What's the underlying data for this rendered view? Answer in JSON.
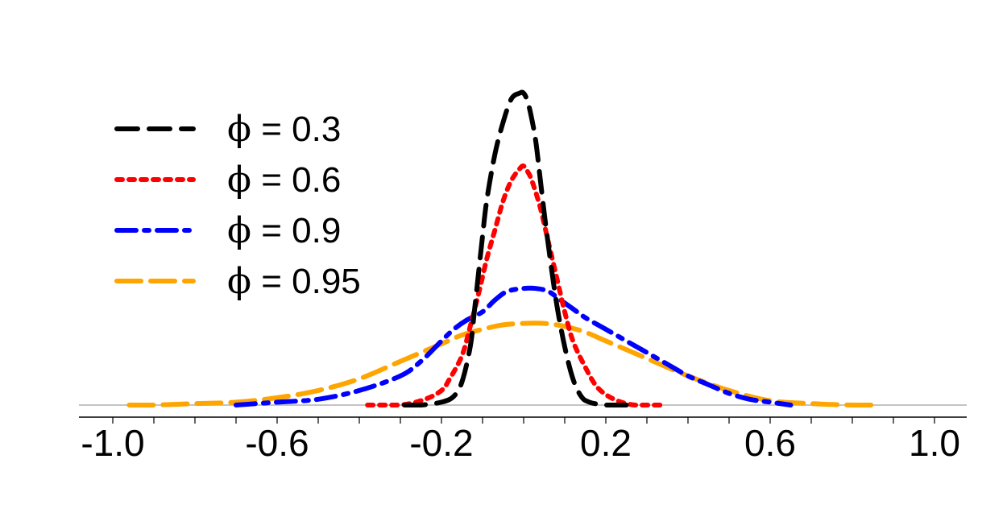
{
  "chart_data": {
    "type": "line",
    "title": "",
    "xlabel": "",
    "ylabel": "",
    "xlim": [
      -1.0,
      1.0
    ],
    "xticks": [
      -1.0,
      -0.6,
      -0.2,
      0.2,
      0.6,
      1.0
    ],
    "xtick_labels": [
      "-1.0",
      "-0.6",
      "-0.2",
      "0.2",
      "0.6",
      "1.0"
    ],
    "y_axis_visible": false,
    "grid": false,
    "legend_position": "top-left",
    "series": [
      {
        "name": "ϕ = 0.3",
        "legend_symbol": "ϕ",
        "legend_text": " = 0.3",
        "color": "#000000",
        "line_style": "dashed",
        "x": [
          -0.29,
          -0.25,
          -0.2,
          -0.17,
          -0.15,
          -0.13,
          -0.12,
          -0.11,
          -0.1,
          -0.09,
          -0.07,
          -0.05,
          -0.03,
          -0.01,
          0.0,
          0.01,
          0.02,
          0.03,
          0.04,
          0.05,
          0.06,
          0.08,
          0.1,
          0.12,
          0.14,
          0.16,
          0.2,
          0.25
        ],
        "y": [
          0.0,
          0.0,
          0.01,
          0.03,
          0.08,
          0.2,
          0.32,
          0.45,
          0.58,
          0.7,
          0.86,
          0.97,
          1.05,
          1.07,
          1.07,
          1.04,
          0.98,
          0.9,
          0.78,
          0.66,
          0.55,
          0.35,
          0.2,
          0.09,
          0.03,
          0.01,
          0.0,
          0.0
        ]
      },
      {
        "name": "ϕ = 0.6",
        "legend_symbol": "ϕ",
        "legend_text": " = 0.6",
        "color": "#ff0000",
        "line_style": "dotted",
        "x": [
          -0.38,
          -0.3,
          -0.24,
          -0.2,
          -0.18,
          -0.15,
          -0.13,
          -0.11,
          -0.09,
          -0.07,
          -0.05,
          -0.03,
          -0.01,
          0.0,
          0.01,
          0.02,
          0.04,
          0.06,
          0.08,
          0.1,
          0.12,
          0.15,
          0.18,
          0.22,
          0.27,
          0.34
        ],
        "y": [
          0.0,
          0.0,
          0.02,
          0.05,
          0.09,
          0.17,
          0.27,
          0.38,
          0.5,
          0.6,
          0.7,
          0.77,
          0.81,
          0.82,
          0.8,
          0.77,
          0.68,
          0.56,
          0.44,
          0.32,
          0.22,
          0.13,
          0.06,
          0.02,
          0.0,
          0.0
        ]
      },
      {
        "name": "ϕ = 0.9",
        "legend_symbol": "ϕ",
        "legend_text": " = 0.9",
        "color": "#0000ff",
        "line_style": "dashdot",
        "x": [
          -0.7,
          -0.6,
          -0.5,
          -0.4,
          -0.3,
          -0.25,
          -0.2,
          -0.17,
          -0.14,
          -0.1,
          -0.07,
          -0.04,
          0.0,
          0.03,
          0.06,
          0.09,
          0.12,
          0.15,
          0.2,
          0.25,
          0.3,
          0.35,
          0.4,
          0.45,
          0.5,
          0.55,
          0.6,
          0.65
        ],
        "y": [
          0.0,
          0.01,
          0.02,
          0.05,
          0.1,
          0.15,
          0.22,
          0.26,
          0.29,
          0.32,
          0.36,
          0.39,
          0.4,
          0.4,
          0.39,
          0.36,
          0.33,
          0.3,
          0.26,
          0.22,
          0.18,
          0.14,
          0.1,
          0.07,
          0.04,
          0.02,
          0.01,
          0.0
        ]
      },
      {
        "name": "ϕ = 0.95",
        "legend_symbol": "ϕ",
        "legend_text": " = 0.95",
        "color": "#ffa500",
        "line_style": "longdash",
        "x": [
          -0.96,
          -0.9,
          -0.8,
          -0.7,
          -0.6,
          -0.5,
          -0.4,
          -0.3,
          -0.2,
          -0.15,
          -0.1,
          -0.05,
          0.0,
          0.05,
          0.1,
          0.15,
          0.2,
          0.3,
          0.4,
          0.5,
          0.6,
          0.7,
          0.8,
          0.85
        ],
        "y": [
          0.0,
          0.0,
          0.005,
          0.01,
          0.025,
          0.05,
          0.09,
          0.15,
          0.21,
          0.24,
          0.26,
          0.275,
          0.28,
          0.28,
          0.27,
          0.25,
          0.22,
          0.16,
          0.1,
          0.05,
          0.015,
          0.005,
          0.0,
          0.0
        ]
      }
    ]
  }
}
